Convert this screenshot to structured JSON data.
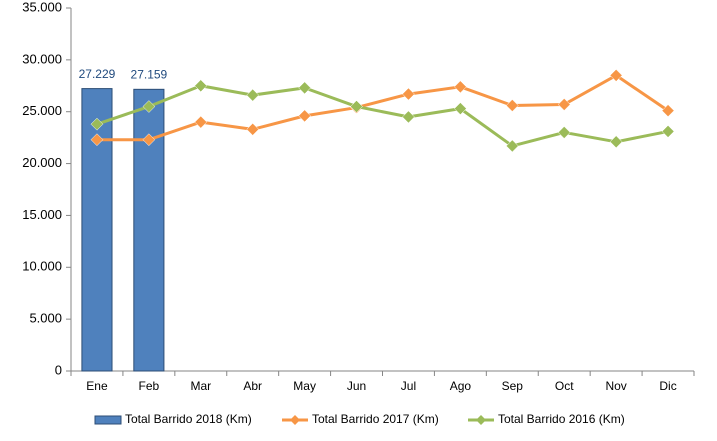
{
  "chart_data": {
    "type": "bar-line",
    "categories": [
      "Ene",
      "Feb",
      "Mar",
      "Abr",
      "May",
      "Jun",
      "Jul",
      "Ago",
      "Sep",
      "Oct",
      "Nov",
      "Dic"
    ],
    "series": [
      {
        "name": "Total Barrido 2018 (Km)",
        "type": "bar",
        "color": "#4f81bd",
        "values": [
          27229,
          27159,
          null,
          null,
          null,
          null,
          null,
          null,
          null,
          null,
          null,
          null
        ],
        "value_labels": [
          "27.229",
          "27.159",
          null,
          null,
          null,
          null,
          null,
          null,
          null,
          null,
          null,
          null
        ]
      },
      {
        "name": "Total Barrido 2017 (Km)",
        "type": "line",
        "color": "#f79646",
        "values": [
          22300,
          22300,
          24000,
          23300,
          24600,
          25400,
          26700,
          27400,
          25600,
          25700,
          28500,
          25100
        ]
      },
      {
        "name": "Total Barrido 2016 (Km)",
        "type": "line",
        "color": "#9bbb59",
        "values": [
          23800,
          25500,
          27500,
          26600,
          27300,
          25500,
          24500,
          25300,
          21700,
          23000,
          22100,
          23100
        ]
      }
    ],
    "ylim": [
      0,
      35000
    ],
    "yticks": [
      0,
      {
        "value": 5000,
        "label": "5.000"
      },
      {
        "value": 10000,
        "label": "10.000"
      },
      {
        "value": 15000,
        "label": "15.000"
      },
      {
        "value": 20000,
        "label": "20.000"
      },
      {
        "value": 25000,
        "label": "25.000"
      },
      {
        "value": 30000,
        "label": "30.000"
      },
      {
        "value": 35000,
        "label": "35.000"
      }
    ],
    "legend": "bottom"
  }
}
